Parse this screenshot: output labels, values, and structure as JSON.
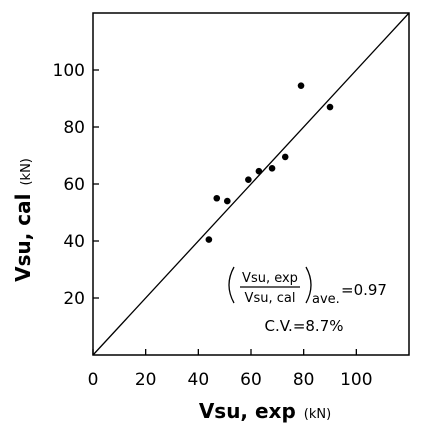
{
  "chart_data": {
    "type": "scatter",
    "title": "",
    "xlabel": "Vsu, exp",
    "xlabel_unit": "(kN)",
    "ylabel": "Vsu, cal",
    "ylabel_unit": "(kN)",
    "xlim": [
      0,
      120
    ],
    "ylim": [
      0,
      120
    ],
    "xticks": [
      0,
      20,
      40,
      60,
      80,
      100
    ],
    "yticks": [
      20,
      40,
      60,
      80,
      100
    ],
    "grid": false,
    "reference_line": "y = x",
    "series": [
      {
        "x": [
          44,
          47,
          51,
          59,
          63,
          68,
          73,
          79,
          90
        ],
        "y": [
          40.5,
          55,
          54,
          61.5,
          64.5,
          65.5,
          69.5,
          94.5,
          87
        ]
      }
    ],
    "annotations": {
      "ratio_numerator": "Vsu, exp",
      "ratio_denominator": "Vsu, cal",
      "ratio_subscript": "ave.",
      "ratio_value": "=0.97",
      "cv": "C.V.=8.7%"
    }
  }
}
